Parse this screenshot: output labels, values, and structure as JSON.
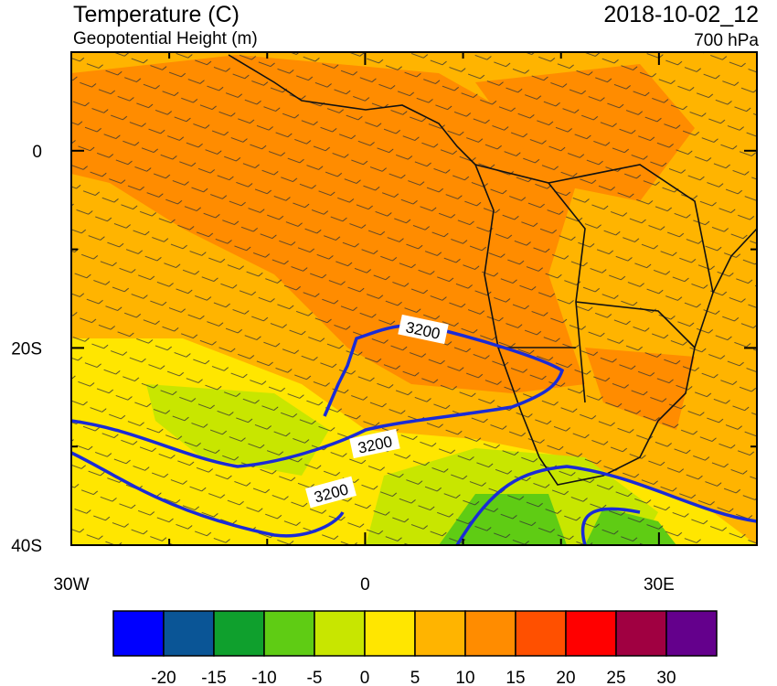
{
  "header": {
    "title": "Temperature (C)",
    "subtitle": "Geopotential Height (m)",
    "date": "2018-10-02_12",
    "level": "700 hPa"
  },
  "map": {
    "xlim": [
      -30,
      40
    ],
    "ylim": [
      -40,
      10
    ],
    "xticks": [
      {
        "value": -30,
        "label": "30W"
      },
      0,
      {
        "value": 30,
        "label": "30E"
      }
    ],
    "yticks": [
      0,
      {
        "value": -20,
        "label": "20S"
      },
      {
        "value": -40,
        "label": "40S"
      }
    ],
    "minor_xticks": [
      -20,
      -10,
      10,
      20
    ],
    "minor_yticks": [
      -10,
      -30
    ],
    "contour_labels": [
      "3200",
      "3200",
      "3200"
    ]
  },
  "colorbar": {
    "levels": [
      -20,
      -15,
      -10,
      -5,
      0,
      5,
      10,
      15,
      20,
      25,
      30
    ],
    "colors": [
      "#0000ff",
      "#0a5596",
      "#0fa02d",
      "#5fcc14",
      "#c8e600",
      "#ffe600",
      "#ffb400",
      "#ff8c00",
      "#ff5000",
      "#ff0000",
      "#a00041",
      "#64008c"
    ]
  }
}
